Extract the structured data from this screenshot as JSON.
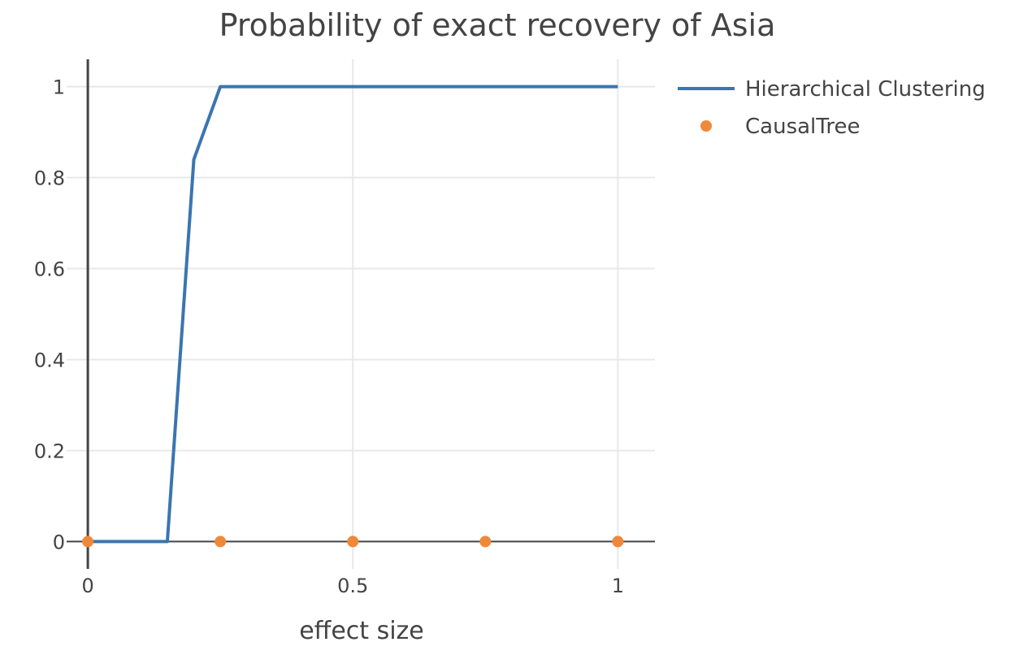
{
  "chart_data": {
    "type": "line",
    "title": "Probability of exact recovery of Asia",
    "xlabel": "effect size",
    "ylabel": "",
    "xlim": [
      -0.04,
      1.07
    ],
    "ylim": [
      -0.06,
      1.06
    ],
    "x_ticks": [
      0,
      0.5,
      1
    ],
    "x_tick_labels": [
      "0",
      "0.5",
      "1"
    ],
    "y_ticks": [
      0,
      0.2,
      0.4,
      0.6,
      0.8,
      1
    ],
    "y_tick_labels": [
      "0",
      "0.2",
      "0.4",
      "0.6",
      "0.8",
      "1"
    ],
    "grid": true,
    "legend_position": "top-right",
    "series": [
      {
        "name": "Hierarchical Clustering",
        "mode": "line",
        "color": "#3a75b0",
        "x": [
          0,
          0.05,
          0.1,
          0.15,
          0.2,
          0.25,
          0.3,
          0.35,
          0.4,
          0.45,
          0.5,
          0.55,
          0.6,
          0.65,
          0.7,
          0.75,
          0.8,
          0.85,
          0.9,
          0.95,
          1
        ],
        "y": [
          0,
          0,
          0,
          0,
          0.84,
          1,
          1,
          1,
          1,
          1,
          1,
          1,
          1,
          1,
          1,
          1,
          1,
          1,
          1,
          1,
          1
        ]
      },
      {
        "name": "CausalTree",
        "mode": "markers",
        "color": "#f0883a",
        "x": [
          0,
          0.25,
          0.5,
          0.75,
          1
        ],
        "y": [
          0,
          0,
          0,
          0,
          0
        ]
      }
    ]
  }
}
